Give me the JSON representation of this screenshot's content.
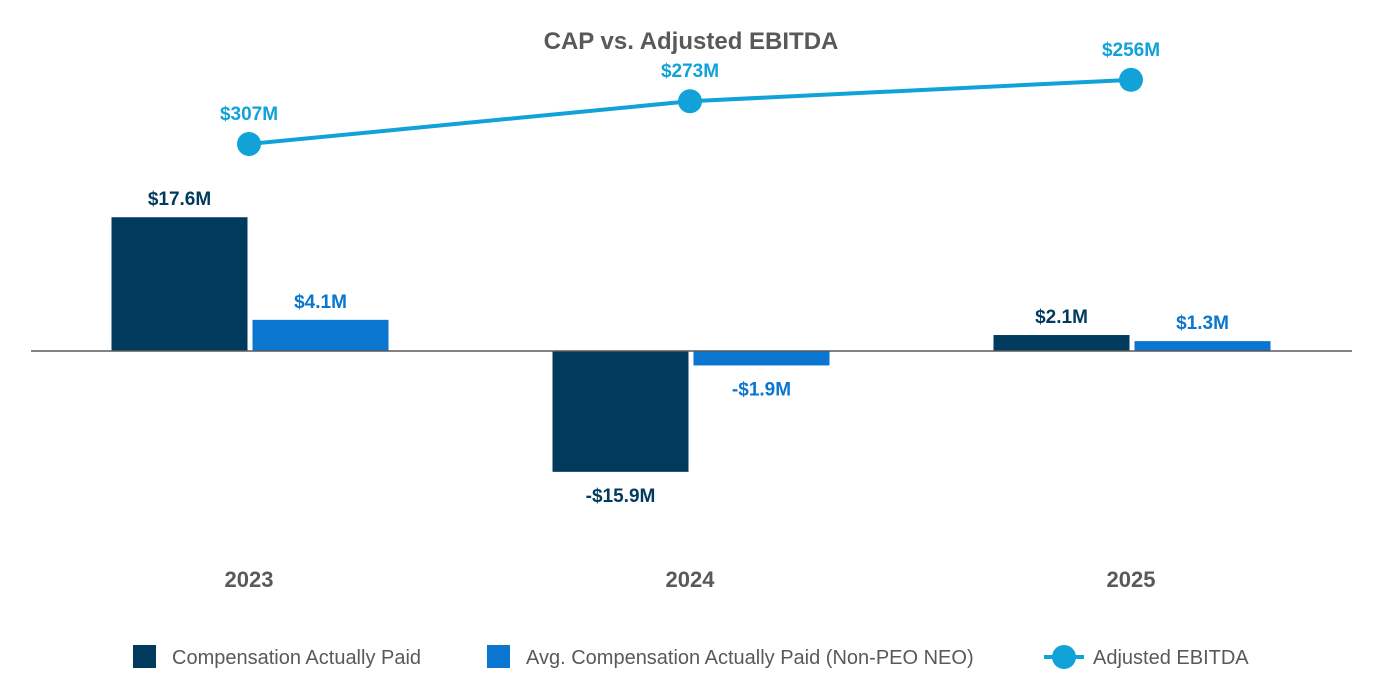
{
  "chart_data": {
    "type": "bar",
    "title": "CAP vs. Adjusted EBITDA",
    "categories": [
      "2023",
      "2024",
      "2025"
    ],
    "series": [
      {
        "name": "Compensation Actually Paid",
        "kind": "bar",
        "color": "#003a5d",
        "values": [
          17.6,
          -15.9,
          2.1
        ],
        "labels": [
          "$17.6M",
          "-$15.9M",
          "$2.1M"
        ]
      },
      {
        "name": "Avg. Compensation Actually Paid (Non-PEO NEO)",
        "kind": "bar",
        "color": "#0a76cf",
        "values": [
          4.1,
          -1.9,
          1.3
        ],
        "labels": [
          "$4.1M",
          "-$1.9M",
          "$1.3M"
        ]
      },
      {
        "name": "Adjusted EBITDA",
        "kind": "line",
        "color": "#11a2d8",
        "values": [
          307,
          273,
          256
        ],
        "labels": [
          "$307M",
          "$273M",
          "$256M"
        ]
      }
    ],
    "grid": false,
    "legend_position": "bottom",
    "axis_line": "zero baseline"
  }
}
